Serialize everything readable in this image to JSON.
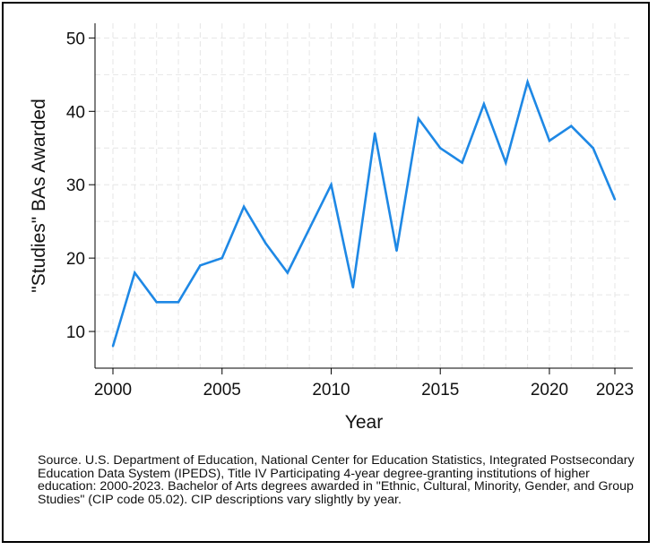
{
  "chart_data": {
    "type": "line",
    "title": "",
    "xlabel": "Year",
    "ylabel": "\"Studies\" BAs Awarded",
    "xlim": [
      2000,
      2023
    ],
    "ylim": [
      5,
      52
    ],
    "x_ticks": [
      2000,
      2005,
      2010,
      2015,
      2020,
      2023
    ],
    "y_ticks": [
      10,
      20,
      30,
      40,
      50
    ],
    "grid": true,
    "legend": "none",
    "series": [
      {
        "color": "#1e88e5",
        "x": [
          2000,
          2001,
          2002,
          2003,
          2004,
          2005,
          2006,
          2007,
          2008,
          2009,
          2010,
          2011,
          2012,
          2013,
          2014,
          2015,
          2016,
          2017,
          2018,
          2019,
          2020,
          2021,
          2022,
          2023
        ],
        "y": [
          8,
          18,
          14,
          14,
          19,
          20,
          27,
          22,
          18,
          24,
          30,
          16,
          37,
          21,
          39,
          35,
          33,
          41,
          33,
          44,
          36,
          38,
          35,
          28
        ]
      }
    ]
  },
  "source_note": "Source. U.S. Department of Education, National Center for Education Statistics, Integrated Postsecondary Education Data System (IPEDS), Title IV Participating 4-year degree-granting institutions of higher education: 2000-2023. Bachelor of Arts degrees awarded in \"Ethnic, Cultural, Minority, Gender, and Group Studies\" (CIP code 05.02). CIP descriptions vary slightly by year."
}
